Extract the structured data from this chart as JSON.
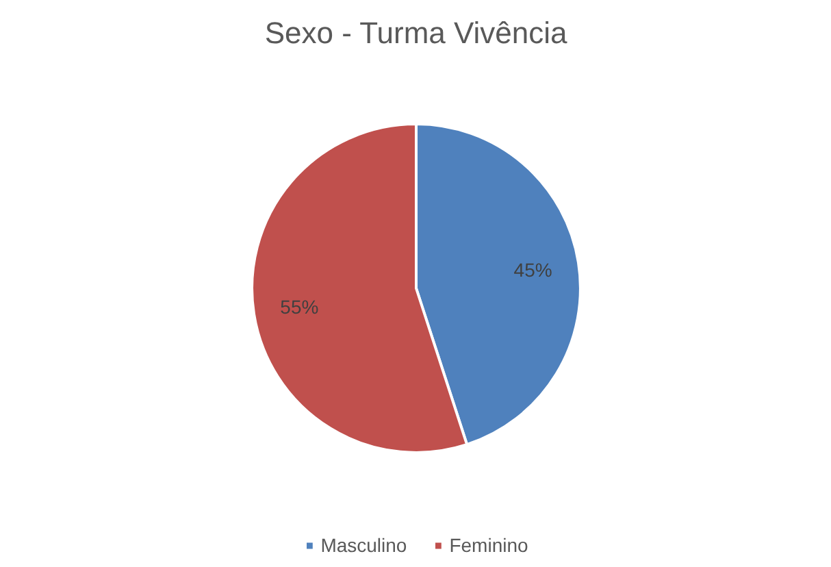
{
  "chart_data": {
    "type": "pie",
    "title": "Sexo - Turma Vivência",
    "categories": [
      "Masculino",
      "Feminino"
    ],
    "values": [
      45,
      55
    ],
    "colors": [
      "#4f81bd",
      "#c0504d"
    ],
    "value_labels": [
      "45%",
      "55%"
    ],
    "legend": "bottom"
  }
}
